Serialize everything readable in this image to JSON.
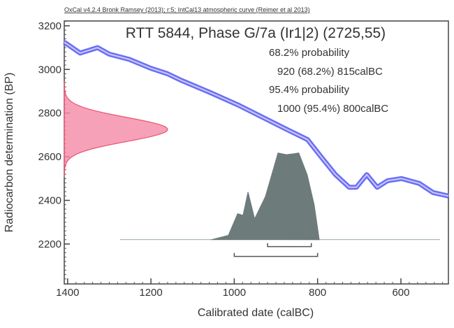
{
  "chart_data": {
    "type": "line",
    "credit": "OxCal v4.2.4 Bronk Ramsey (2013); r:5; IntCal13 atmospheric curve (Reimer et al 2013)",
    "title": "RTT 5844, Phase G/7a (Ir1|2) (2725,55)",
    "xlabel": "Calibrated date (calBC)",
    "ylabel": "Radiocarbon determination (BP)",
    "xlim": [
      1408,
      486
    ],
    "ylim": [
      2017,
      3222
    ],
    "xticks": [
      1400,
      1200,
      1000,
      800,
      600
    ],
    "yticks": [
      3200,
      3000,
      2800,
      2600,
      2400,
      2200
    ],
    "annotations": [
      "68.2% probability",
      "920 (68.2%) 815calBC",
      "95.4% probability",
      "1000 (95.4%) 800calBC"
    ],
    "calibration_curve": {
      "name": "IntCal13",
      "color": "#6b6ef2",
      "x": [
        1408,
        1370,
        1328,
        1300,
        1252,
        1200,
        1160,
        1127,
        1059,
        992,
        925,
        875,
        824,
        791,
        757,
        724,
        707,
        682,
        657,
        632,
        599,
        556,
        523,
        486
      ],
      "y": [
        3125,
        3075,
        3100,
        3070,
        3046,
        3005,
        2980,
        2950,
        2895,
        2838,
        2774,
        2726,
        2678,
        2598,
        2518,
        2460,
        2460,
        2518,
        2460,
        2490,
        2500,
        2478,
        2436,
        2420
      ]
    },
    "radiocarbon_measurement": {
      "mean": 2725,
      "sigma": 55,
      "color": "#f58aa8"
    },
    "calibrated_distribution": {
      "color": "#6e7b7b",
      "baseline_bp": 2220,
      "x": [
        1055,
        1014,
        992,
        979,
        967,
        951,
        925,
        895,
        875,
        858,
        845,
        825,
        808,
        796
      ],
      "density": [
        0,
        0.05,
        0.3,
        0.28,
        0.55,
        0.24,
        0.5,
        1.0,
        0.98,
        0.99,
        1.0,
        0.75,
        0.4,
        0
      ]
    },
    "ranges": [
      {
        "level": "68.2%",
        "from": 920,
        "to": 815
      },
      {
        "level": "95.4%",
        "from": 1000,
        "to": 800
      }
    ]
  }
}
